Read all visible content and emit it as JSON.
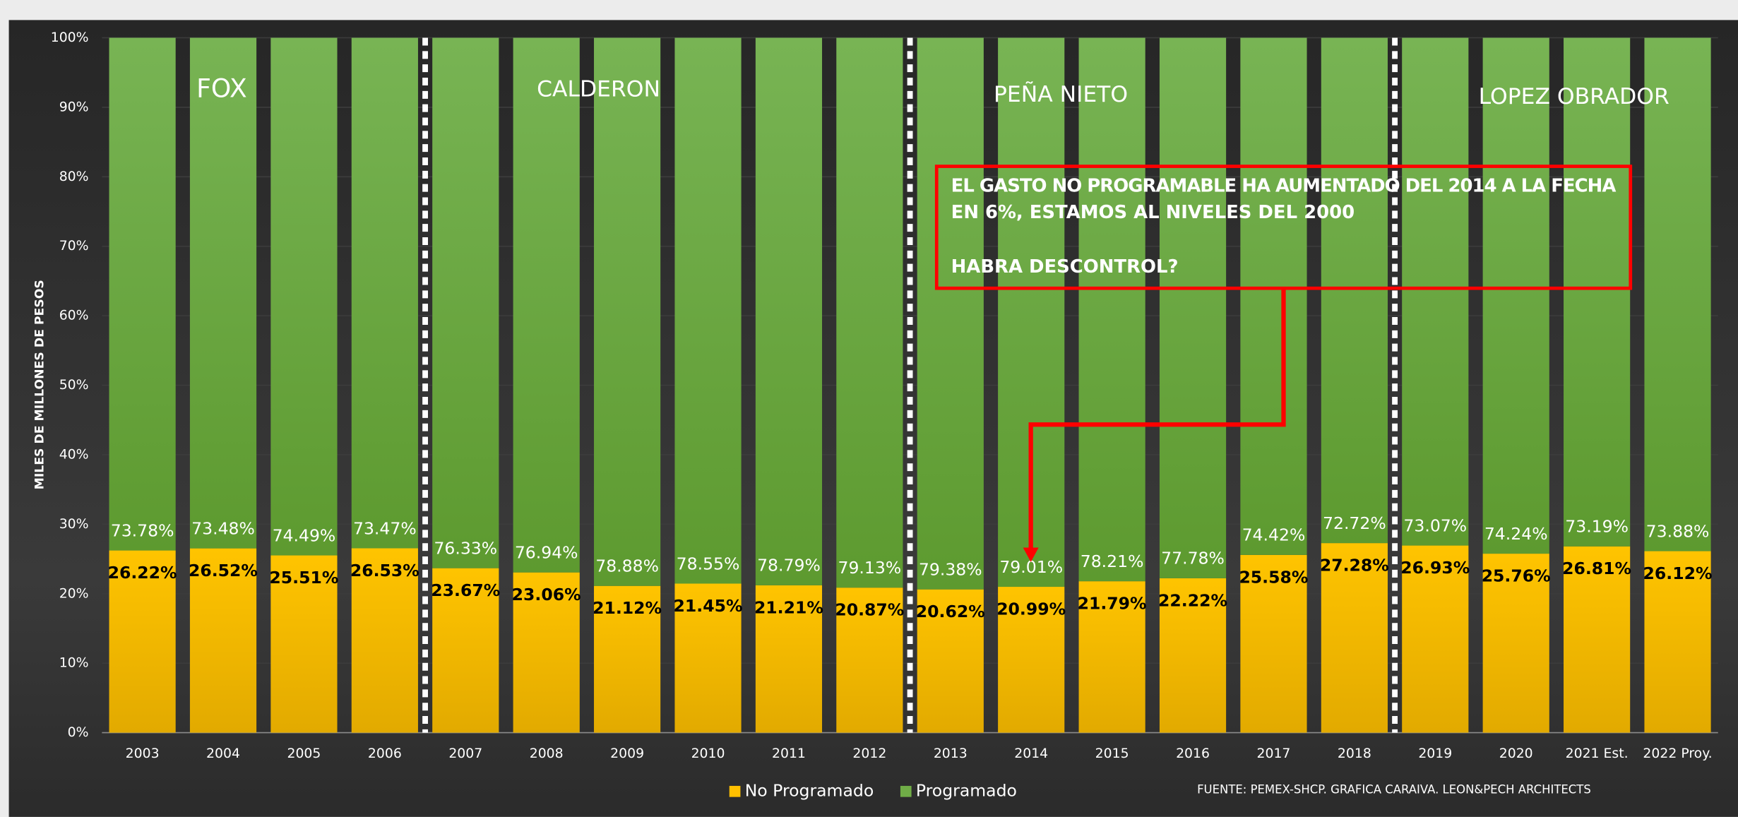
{
  "chart_data": {
    "type": "bar",
    "stacked": true,
    "y_label": "MILES DE MILLONES DE  PESOS",
    "categories": [
      "2003",
      "2004",
      "2005",
      "2006",
      "2007",
      "2008",
      "2009",
      "2010",
      "2011",
      "2012",
      "2013",
      "2014",
      "2015",
      "2016",
      "2017",
      "2018",
      "2019",
      "2020",
      "2021 Est.",
      "2022 Proy."
    ],
    "series": [
      {
        "name": "No Programado",
        "color": "#ffc000",
        "values": [
          26.22,
          26.52,
          25.51,
          26.53,
          23.67,
          23.06,
          21.12,
          21.45,
          21.21,
          20.87,
          20.62,
          20.99,
          21.79,
          22.22,
          25.58,
          27.28,
          26.93,
          25.76,
          26.81,
          26.12
        ],
        "value_labels": [
          "26.22%",
          "26.52%",
          "25.51%",
          "26.53%",
          "23.67%",
          "23.06%",
          "21.12%",
          "21.45%",
          "21.21%",
          "20.87%",
          "20.62%",
          "20.99%",
          "21.79%",
          "22.22%",
          "25.58%",
          "27.28%",
          "26.93%",
          "25.76%",
          "26.81%",
          "26.12%"
        ]
      },
      {
        "name": "Programado",
        "color": "#70ad47",
        "values": [
          73.78,
          73.48,
          74.49,
          73.47,
          76.33,
          76.94,
          78.88,
          78.55,
          78.79,
          79.13,
          79.38,
          79.01,
          78.21,
          77.78,
          74.42,
          72.72,
          73.07,
          74.24,
          73.19,
          73.88
        ],
        "value_labels": [
          "73.78%",
          "73.48%",
          "74.49%",
          "73.47%",
          "76.33%",
          "76.94%",
          "78.88%",
          "78.55%",
          "78.79%",
          "79.13%",
          "79.38%",
          "79.01%",
          "78.21%",
          "77.78%",
          "74.42%",
          "72.72%",
          "73.07%",
          "74.24%",
          "73.19%",
          "73.88%"
        ]
      }
    ],
    "ylim": [
      0,
      100
    ],
    "yticks": [
      {
        "value": 0,
        "label": "0%"
      },
      {
        "value": 10,
        "label": "10%"
      },
      {
        "value": 20,
        "label": "20%"
      },
      {
        "value": 30,
        "label": "30%"
      },
      {
        "value": 40,
        "label": "40%"
      },
      {
        "value": 50,
        "label": "50%"
      },
      {
        "value": 60,
        "label": "60%"
      },
      {
        "value": 70,
        "label": "70%"
      },
      {
        "value": 80,
        "label": "80%"
      },
      {
        "value": 90,
        "label": "90%"
      },
      {
        "value": 100,
        "label": "100%"
      }
    ],
    "legend": "bottom",
    "annotations": [
      "FOX",
      "CALDERON",
      "PEÑA NIETO",
      "LOPEZ OBRADOR"
    ],
    "note": [
      "EL GASTO NO PROGRAMABLE HA AUMENTADO DEL 2014 A LA FECHA",
      "EN 6%, ESTAMOS AL NIVELES DEL 2000",
      "HABRA DESCONTROL?"
    ],
    "source": "FUENTE: PEMEX-SHCP. GRAFICA CARAIVA. LEON&PECH ARCHITECTS"
  }
}
